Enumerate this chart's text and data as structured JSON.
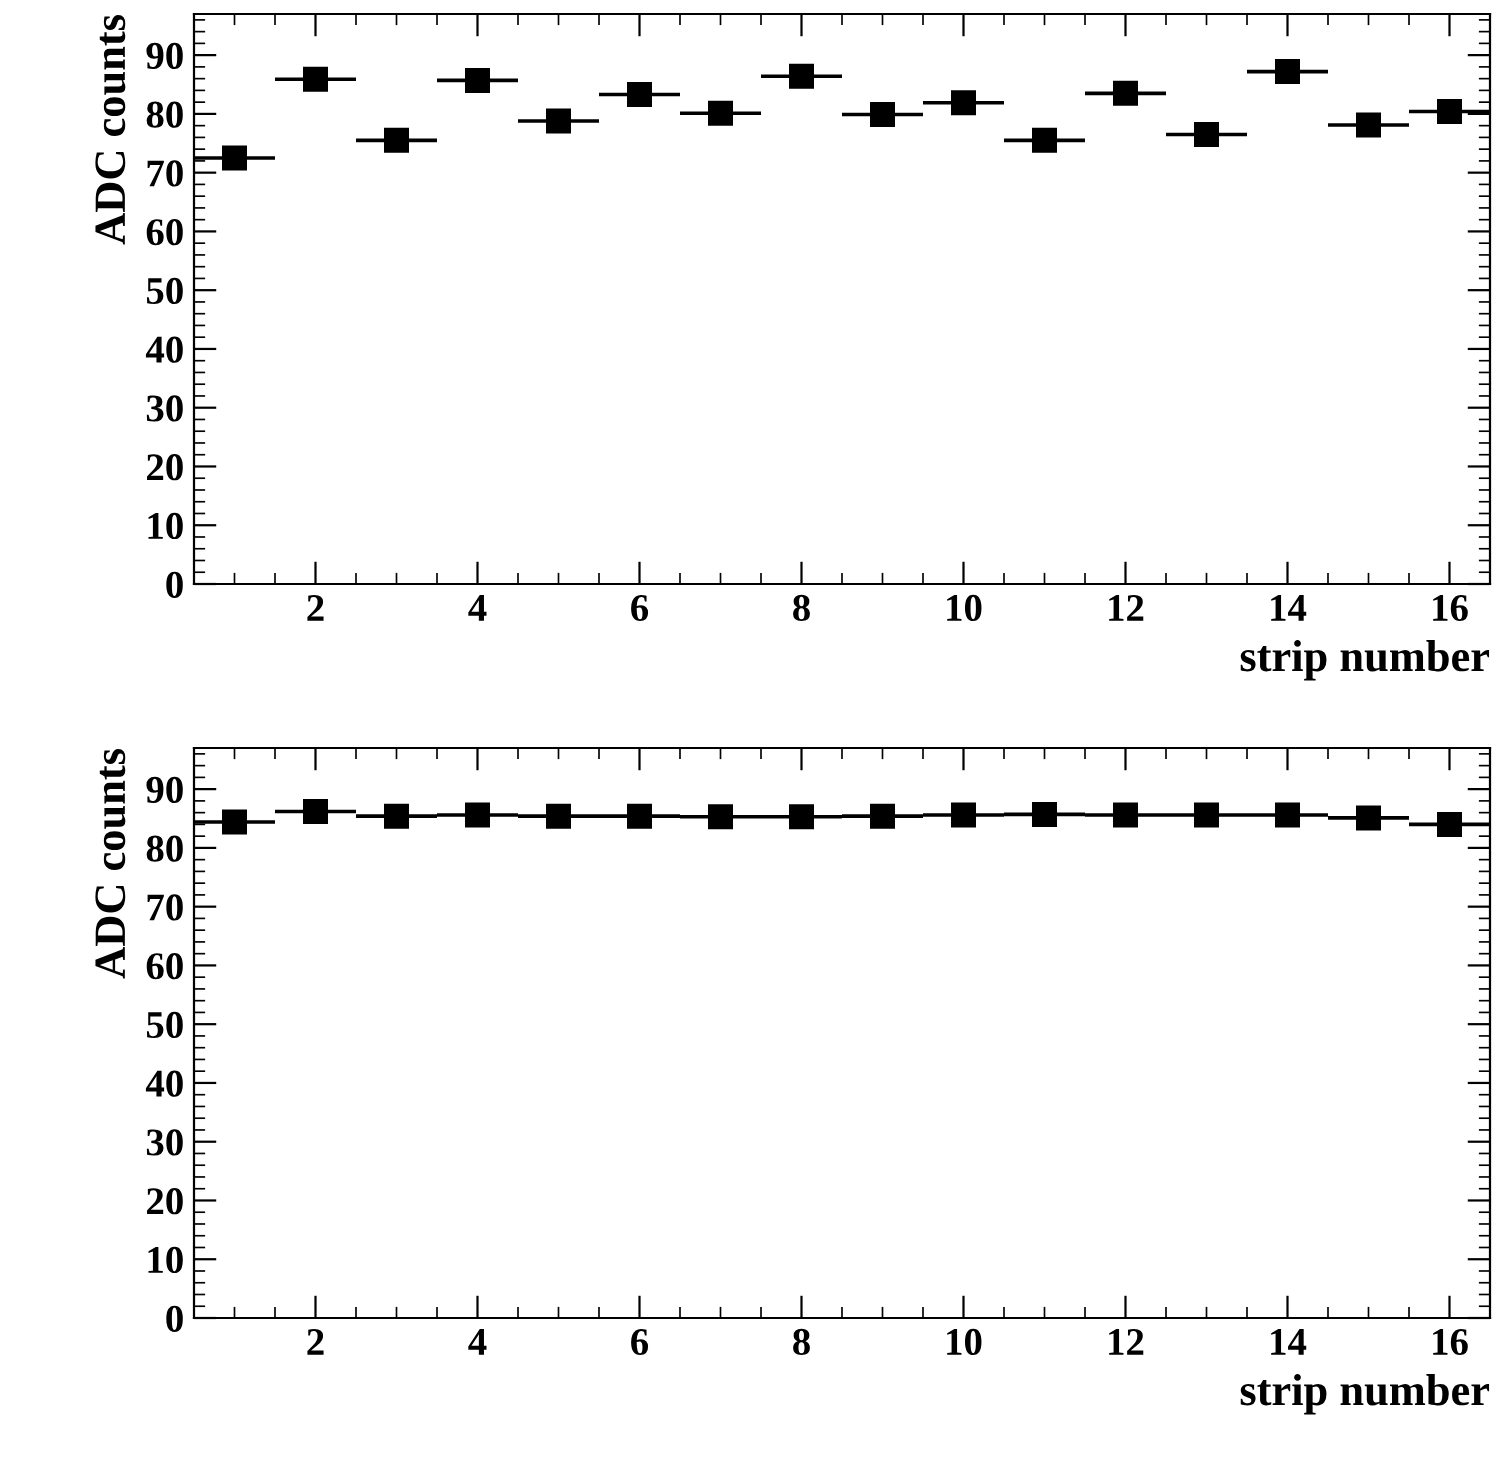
{
  "chart_data": [
    {
      "type": "scatter",
      "xlabel": "strip number",
      "ylabel": "ADC counts",
      "xlim": [
        0.5,
        16.5
      ],
      "xticks": [
        2,
        4,
        6,
        8,
        10,
        12,
        14,
        16
      ],
      "ylim": [
        0,
        97
      ],
      "yticks": [
        0,
        10,
        20,
        30,
        40,
        50,
        60,
        70,
        80,
        90
      ],
      "marker": "square",
      "grid": false,
      "legend": false,
      "x": [
        1,
        2,
        3,
        4,
        5,
        6,
        7,
        8,
        9,
        10,
        11,
        12,
        13,
        14,
        15,
        16
      ],
      "series": [
        {
          "color": "#000000",
          "values": [
            72.5,
            85.9,
            75.5,
            85.7,
            78.8,
            83.3,
            80.1,
            86.4,
            79.9,
            81.9,
            75.5,
            83.5,
            76.5,
            87.2,
            78.1,
            80.4
          ],
          "xerrors": [
            0.5,
            0.5,
            0.5,
            0.5,
            0.5,
            0.5,
            0.5,
            0.5,
            0.5,
            0.5,
            0.5,
            0.5,
            0.5,
            0.5,
            0.5,
            0.5
          ]
        }
      ]
    },
    {
      "type": "scatter",
      "xlabel": "strip number",
      "ylabel": "ADC counts",
      "xlim": [
        0.5,
        16.5
      ],
      "xticks": [
        2,
        4,
        6,
        8,
        10,
        12,
        14,
        16
      ],
      "ylim": [
        0,
        97
      ],
      "yticks": [
        0,
        10,
        20,
        30,
        40,
        50,
        60,
        70,
        80,
        90
      ],
      "marker": "square",
      "grid": false,
      "legend": false,
      "x": [
        1,
        2,
        3,
        4,
        5,
        6,
        7,
        8,
        9,
        10,
        11,
        12,
        13,
        14,
        15,
        16
      ],
      "series": [
        {
          "color": "#000000",
          "values": [
            84.4,
            86.2,
            85.4,
            85.6,
            85.4,
            85.4,
            85.3,
            85.3,
            85.4,
            85.6,
            85.7,
            85.6,
            85.6,
            85.6,
            85.1,
            84.0
          ],
          "xerrors": [
            0.5,
            0.5,
            0.5,
            0.5,
            0.5,
            0.5,
            0.5,
            0.5,
            0.5,
            0.5,
            0.5,
            0.5,
            0.5,
            0.5,
            0.5,
            0.5
          ]
        }
      ]
    }
  ]
}
